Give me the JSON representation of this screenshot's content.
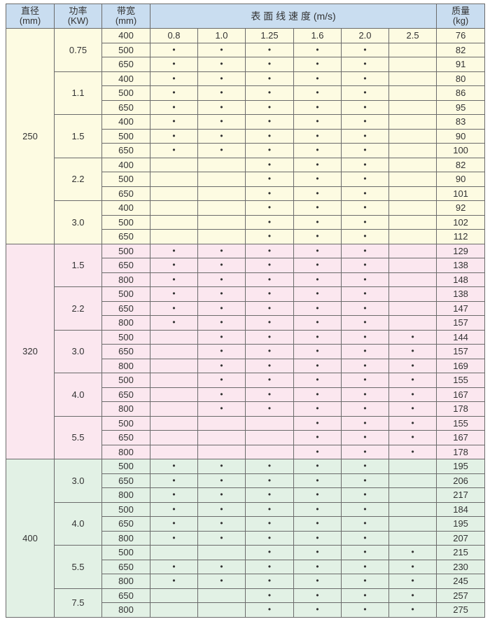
{
  "header": {
    "diameter": [
      "直径",
      "(mm)"
    ],
    "power": [
      "功率",
      "(KW)"
    ],
    "belt_width": [
      "带宽",
      "(mm)"
    ],
    "speed": "表 面 线 速 度 (m/s)",
    "weight": [
      "质量",
      "(kg)"
    ]
  },
  "colors": {
    "header": "#c9ddf0",
    "group_250": "#fdfbe2",
    "group_320": "#fbe7ef",
    "group_400": "#e2f1e5"
  },
  "groups": [
    {
      "diameter": "250",
      "powers": [
        {
          "power": "0.75",
          "rows": [
            {
              "width": "400",
              "speeds": [
                "0.8",
                "1.0",
                "1.25",
                "1.6",
                "2.0",
                "2.5"
              ],
              "weight": "76"
            },
            {
              "width": "500",
              "speeds": [
                "•",
                "•",
                "•",
                "•",
                "•",
                ""
              ],
              "weight": "82"
            },
            {
              "width": "650",
              "speeds": [
                "•",
                "•",
                "•",
                "•",
                "•",
                ""
              ],
              "weight": "91"
            }
          ]
        },
        {
          "power": "1.1",
          "rows": [
            {
              "width": "400",
              "speeds": [
                "•",
                "•",
                "•",
                "•",
                "•",
                ""
              ],
              "weight": "80"
            },
            {
              "width": "500",
              "speeds": [
                "•",
                "•",
                "•",
                "•",
                "•",
                ""
              ],
              "weight": "86"
            },
            {
              "width": "650",
              "speeds": [
                "•",
                "•",
                "•",
                "•",
                "•",
                ""
              ],
              "weight": "95"
            }
          ]
        },
        {
          "power": "1.5",
          "rows": [
            {
              "width": "400",
              "speeds": [
                "•",
                "•",
                "•",
                "•",
                "•",
                ""
              ],
              "weight": "83"
            },
            {
              "width": "500",
              "speeds": [
                "•",
                "•",
                "•",
                "•",
                "•",
                ""
              ],
              "weight": "90"
            },
            {
              "width": "650",
              "speeds": [
                "•",
                "•",
                "•",
                "•",
                "•",
                ""
              ],
              "weight": "100"
            }
          ]
        },
        {
          "power": "2.2",
          "rows": [
            {
              "width": "400",
              "speeds": [
                "",
                "",
                "•",
                "•",
                "•",
                ""
              ],
              "weight": "82"
            },
            {
              "width": "500",
              "speeds": [
                "",
                "",
                "•",
                "•",
                "•",
                ""
              ],
              "weight": "90"
            },
            {
              "width": "650",
              "speeds": [
                "",
                "",
                "•",
                "•",
                "•",
                ""
              ],
              "weight": "101"
            }
          ]
        },
        {
          "power": "3.0",
          "rows": [
            {
              "width": "400",
              "speeds": [
                "",
                "",
                "•",
                "•",
                "•",
                ""
              ],
              "weight": "92"
            },
            {
              "width": "500",
              "speeds": [
                "",
                "",
                "•",
                "•",
                "•",
                ""
              ],
              "weight": "102"
            },
            {
              "width": "650",
              "speeds": [
                "",
                "",
                "•",
                "•",
                "•",
                ""
              ],
              "weight": "112"
            }
          ]
        }
      ]
    },
    {
      "diameter": "320",
      "powers": [
        {
          "power": "1.5",
          "rows": [
            {
              "width": "500",
              "speeds": [
                "•",
                "•",
                "•",
                "•",
                "•",
                ""
              ],
              "weight": "129"
            },
            {
              "width": "650",
              "speeds": [
                "•",
                "•",
                "•",
                "•",
                "•",
                ""
              ],
              "weight": "138"
            },
            {
              "width": "800",
              "speeds": [
                "•",
                "•",
                "•",
                "•",
                "•",
                ""
              ],
              "weight": "148"
            }
          ]
        },
        {
          "power": "2.2",
          "rows": [
            {
              "width": "500",
              "speeds": [
                "•",
                "•",
                "•",
                "•",
                "•",
                ""
              ],
              "weight": "138"
            },
            {
              "width": "650",
              "speeds": [
                "•",
                "•",
                "•",
                "•",
                "•",
                ""
              ],
              "weight": "147"
            },
            {
              "width": "800",
              "speeds": [
                "•",
                "•",
                "•",
                "•",
                "•",
                ""
              ],
              "weight": "157"
            }
          ]
        },
        {
          "power": "3.0",
          "rows": [
            {
              "width": "500",
              "speeds": [
                "",
                "•",
                "•",
                "•",
                "•",
                "•"
              ],
              "weight": "144"
            },
            {
              "width": "650",
              "speeds": [
                "",
                "•",
                "•",
                "•",
                "•",
                "•"
              ],
              "weight": "157"
            },
            {
              "width": "800",
              "speeds": [
                "",
                "•",
                "•",
                "•",
                "•",
                "•"
              ],
              "weight": "169"
            }
          ]
        },
        {
          "power": "4.0",
          "rows": [
            {
              "width": "500",
              "speeds": [
                "",
                "•",
                "•",
                "•",
                "•",
                "•"
              ],
              "weight": "155"
            },
            {
              "width": "650",
              "speeds": [
                "",
                "•",
                "•",
                "•",
                "•",
                "•"
              ],
              "weight": "167"
            },
            {
              "width": "800",
              "speeds": [
                "",
                "•",
                "•",
                "•",
                "•",
                "•"
              ],
              "weight": "178"
            }
          ]
        },
        {
          "power": "5.5",
          "rows": [
            {
              "width": "500",
              "speeds": [
                "",
                "",
                "",
                "•",
                "•",
                "•"
              ],
              "weight": "155"
            },
            {
              "width": "650",
              "speeds": [
                "",
                "",
                "",
                "•",
                "•",
                "•"
              ],
              "weight": "167"
            },
            {
              "width": "800",
              "speeds": [
                "",
                "",
                "",
                "•",
                "•",
                "•"
              ],
              "weight": "178"
            }
          ]
        }
      ]
    },
    {
      "diameter": "400",
      "powers": [
        {
          "power": "3.0",
          "rows": [
            {
              "width": "500",
              "speeds": [
                "•",
                "•",
                "•",
                "•",
                "•",
                ""
              ],
              "weight": "195"
            },
            {
              "width": "650",
              "speeds": [
                "•",
                "•",
                "•",
                "•",
                "•",
                ""
              ],
              "weight": "206"
            },
            {
              "width": "800",
              "speeds": [
                "•",
                "•",
                "•",
                "•",
                "•",
                ""
              ],
              "weight": "217"
            }
          ]
        },
        {
          "power": "4.0",
          "rows": [
            {
              "width": "500",
              "speeds": [
                "•",
                "•",
                "•",
                "•",
                "•",
                ""
              ],
              "weight": "184"
            },
            {
              "width": "650",
              "speeds": [
                "•",
                "•",
                "•",
                "•",
                "•",
                ""
              ],
              "weight": "195"
            },
            {
              "width": "800",
              "speeds": [
                "•",
                "•",
                "•",
                "•",
                "•",
                ""
              ],
              "weight": "207"
            }
          ]
        },
        {
          "power": "5.5",
          "rows": [
            {
              "width": "500",
              "speeds": [
                "",
                "",
                "•",
                "•",
                "•",
                "•"
              ],
              "weight": "215"
            },
            {
              "width": "650",
              "speeds": [
                "•",
                "•",
                "•",
                "•",
                "•",
                "•"
              ],
              "weight": "230"
            },
            {
              "width": "800",
              "speeds": [
                "•",
                "•",
                "•",
                "•",
                "•",
                "•"
              ],
              "weight": "245"
            }
          ]
        },
        {
          "power": "7.5",
          "rows": [
            {
              "width": "650",
              "speeds": [
                "",
                "",
                "•",
                "•",
                "•",
                "•"
              ],
              "weight": "257"
            },
            {
              "width": "800",
              "speeds": [
                "",
                "",
                "•",
                "•",
                "•",
                "•"
              ],
              "weight": "275"
            }
          ]
        }
      ]
    }
  ]
}
